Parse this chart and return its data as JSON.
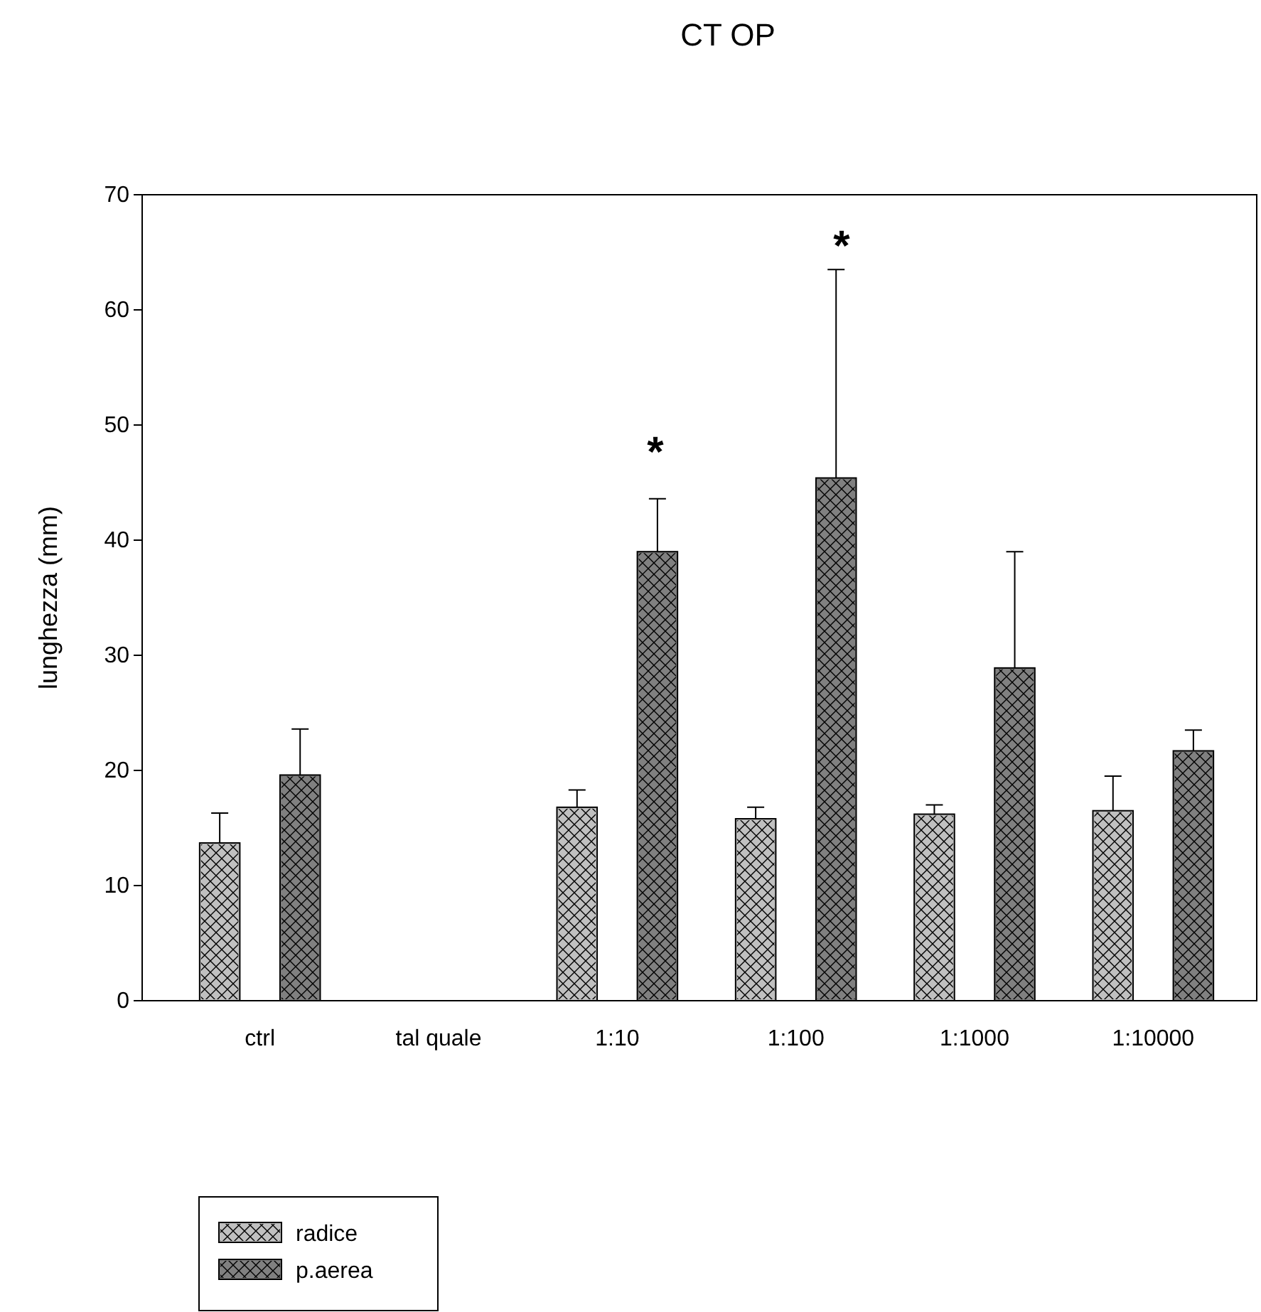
{
  "chart_data": {
    "type": "bar",
    "title": "CT OP",
    "ylabel": "lunghezza  (mm)",
    "categories": [
      "ctrl",
      "tal quale",
      "1:10",
      "1:100",
      "1:1000",
      "1:10000"
    ],
    "series": [
      {
        "name": "radice",
        "color": "#c0c0c0",
        "values": [
          13.7,
          null,
          16.8,
          15.8,
          16.2,
          16.5
        ],
        "errors": [
          [
            13.7,
            16.3
          ],
          null,
          [
            16.8,
            18.3
          ],
          [
            15.8,
            16.8
          ],
          [
            16.2,
            17.0
          ],
          [
            16.5,
            19.5
          ]
        ]
      },
      {
        "name": "p.aerea",
        "color": "#808080",
        "values": [
          19.6,
          null,
          39.0,
          45.4,
          28.9,
          21.7
        ],
        "errors": [
          [
            19.6,
            23.6
          ],
          null,
          [
            39.0,
            43.6
          ],
          [
            45.4,
            63.5
          ],
          [
            28.9,
            39.0
          ],
          [
            21.7,
            23.5
          ]
        ]
      }
    ],
    "annotations": [
      "*",
      "*"
    ],
    "ylim": [
      0,
      70
    ],
    "yticks": [
      0,
      10,
      20,
      30,
      40,
      50,
      60,
      70
    ],
    "grid": false,
    "legend": "bottom left"
  }
}
